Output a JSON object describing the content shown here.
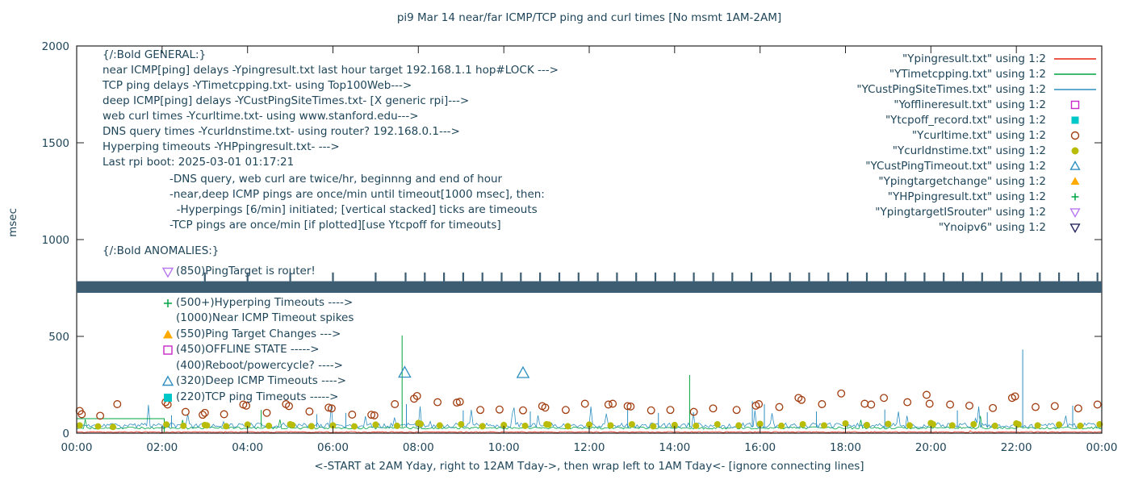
{
  "title": "pi9 Mar 14  near/far ICMP/TCP ping and curl times [No msmt 1AM-2AM]",
  "xlabel": "<-START at 2AM Yday, right to 12AM Tday->, then wrap left to 1AM Tday<- [ignore connecting lines]",
  "ylabel": "msec",
  "colors": {
    "text": "#20465a",
    "axis": "#222222",
    "red": "#e8210f",
    "green": "#00a443",
    "blue": "#2e8fc0",
    "magenta": "#c828c8",
    "cyan": "#00c8c8",
    "darkred": "#a13d10",
    "olive": "#b9bd0a",
    "orange": "#ffaa00",
    "violet": "#b878f0",
    "navy": "#26265e",
    "band": "#3d5d72"
  },
  "legend": [
    {
      "label": "\"Ypingresult.txt\" using 1:2",
      "marker": "line",
      "color": "#e8210f"
    },
    {
      "label": "\"YTimetcpping.txt\" using 1:2",
      "marker": "line",
      "color": "#00a443"
    },
    {
      "label": "\"YCustPingSiteTimes.txt\" using 1:2",
      "marker": "line",
      "color": "#2e8fc0"
    },
    {
      "label": "\"Yofflineresult.txt\" using 1:2",
      "marker": "open-square",
      "color": "#c828c8"
    },
    {
      "label": "\"Ytcpoff_record.txt\" using 1:2",
      "marker": "filled-square",
      "color": "#00c8c8"
    },
    {
      "label": "\"Ycurltime.txt\" using 1:2",
      "marker": "open-circle",
      "color": "#a13d10"
    },
    {
      "label": "\"Ycurldnstime.txt\" using 1:2",
      "marker": "filled-circle",
      "color": "#b9bd0a"
    },
    {
      "label": "\"YCustPingTimeout.txt\" using 1:2",
      "marker": "open-triangle-up",
      "color": "#2e8fc0"
    },
    {
      "label": "\"Ypingtargetchange\" using 1:2",
      "marker": "filled-triangle-up",
      "color": "#ffaa00"
    },
    {
      "label": "\"YHPpingresult.txt\" using 1:2",
      "marker": "plus",
      "color": "#00a443"
    },
    {
      "label": "\"YpingtargetISrouter\" using 1:2",
      "marker": "open-triangle-down",
      "color": "#b878f0"
    },
    {
      "label": "\"Ynoipv6\" using 1:2",
      "marker": "open-triangle-down",
      "color": "#26265e"
    }
  ],
  "general_lines": [
    "{/:Bold GENERAL:}",
    "near ICMP[ping] delays -Ypingresult.txt last hour target 192.168.1.1 hop#LOCK --->",
    "TCP ping delays -YTimetcpping.txt- using Top100Web--->",
    "deep ICMP[ping] delays -YCustPingSiteTimes.txt- [X generic rpi]--->",
    "web curl times -Ycurltime.txt- using www.stanford.edu--->",
    "DNS query times -Ycurldnstime.txt- using router? 192.168.0.1--->",
    "Hyperping timeouts -YHPpingresult.txt- --->",
    "Last rpi boot: 2025-03-01 01:17:21"
  ],
  "general_indent_lines": [
    "-DNS query, web curl are twice/hr, beginnng and end of hour",
    "-near,deep ICMP pings are once/min until timeout[1000 msec], then:",
    "  -Hyperpings [6/min] initiated; [vertical stacked] ticks are timeouts",
    "-TCP pings are once/min [if plotted][use Ytcpoff for timeouts]"
  ],
  "anomalies_header": "{/:Bold ANOMALIES:}",
  "anomalies": [
    {
      "marker": "open-triangle-down",
      "color": "#b878f0",
      "text": "(850)PingTarget is router!"
    },
    {
      "spacer": true
    },
    {
      "marker": "plus",
      "color": "#00a443",
      "text": "(500+)Hyperping Timeouts ---->"
    },
    {
      "marker": null,
      "color": null,
      "text": "(1000)Near ICMP Timeout spikes"
    },
    {
      "marker": "filled-triangle-up",
      "color": "#ffaa00",
      "text": "(550)Ping Target Changes --->"
    },
    {
      "marker": "open-square",
      "color": "#c828c8",
      "text": "(450)OFFLINE STATE ----->"
    },
    {
      "marker": null,
      "color": null,
      "text": "(400)Reboot/powercycle? ---->"
    },
    {
      "marker": "open-triangle-up",
      "color": "#2e8fc0",
      "text": "(320)Deep ICMP Timeouts ---->"
    },
    {
      "marker": "filled-square",
      "color": "#00c8c8",
      "text": "(220)TCP ping Timeouts ----->"
    }
  ],
  "chart_data": {
    "type": "line",
    "title": "pi9 Mar 14  near/far ICMP/TCP ping and curl times [No msmt 1AM-2AM]",
    "ylabel": "msec",
    "ylim": [
      0,
      2000
    ],
    "yticks": [
      0,
      500,
      1000,
      1500,
      2000
    ],
    "x_hours": [
      0,
      24
    ],
    "xtick_hours": [
      0,
      2,
      4,
      6,
      8,
      10,
      12,
      14,
      16,
      18,
      20,
      22,
      24
    ],
    "xtick_labels": [
      "00:00",
      "02:00",
      "04:00",
      "06:00",
      "08:00",
      "10:00",
      "12:00",
      "14:00",
      "16:00",
      "18:00",
      "20:00",
      "22:00",
      "00:00"
    ],
    "grid": false,
    "legend_position": "top-right-inside",
    "baseline_noise": [
      {
        "series": "Ypingresult.txt",
        "color": "#e8210f",
        "mean_msec": 6,
        "spread_msec": 5,
        "spike_prob": 0.002,
        "spike_max": 20,
        "seed": 47
      },
      {
        "series": "YTimetcpping.txt",
        "color": "#00a443",
        "mean_msec": 27,
        "spread_msec": 12,
        "spike_prob": 0.008,
        "spike_max": 70,
        "seed": 29
      },
      {
        "series": "YCustPingSiteTimes.txt",
        "color": "#2e8fc0",
        "mean_msec": 40,
        "spread_msec": 26,
        "spike_prob": 0.045,
        "spike_max": 120,
        "seed": 11
      }
    ],
    "spikes": [
      {
        "color": "#00a443",
        "x": 7.62,
        "y": 505
      },
      {
        "color": "#00a443",
        "x": 14.35,
        "y": 300
      },
      {
        "color": "#00a443",
        "x": 4.32,
        "y": 120
      },
      {
        "color": "#2e8fc0",
        "x": 22.15,
        "y": 432
      },
      {
        "color": "#2e8fc0",
        "x": 15.82,
        "y": 165
      },
      {
        "color": "#2e8fc0",
        "x": 16.1,
        "y": 150
      },
      {
        "color": "#2e8fc0",
        "x": 12.9,
        "y": 128
      },
      {
        "color": "#2e8fc0",
        "x": 9.05,
        "y": 118
      },
      {
        "color": "#2e8fc0",
        "x": 7.72,
        "y": 150
      },
      {
        "color": "#2e8fc0",
        "x": 10.62,
        "y": 112
      },
      {
        "color": "#2e8fc0",
        "x": 13.62,
        "y": 105
      },
      {
        "color": "#2e8fc0",
        "x": 17.32,
        "y": 112
      },
      {
        "color": "#2e8fc0",
        "x": 18.92,
        "y": 122
      },
      {
        "color": "#2e8fc0",
        "x": 20.62,
        "y": 118
      },
      {
        "color": "#2e8fc0",
        "x": 21.32,
        "y": 108
      },
      {
        "color": "#2e8fc0",
        "x": 23.32,
        "y": 142
      },
      {
        "color": "#2e8fc0",
        "x": 2.22,
        "y": 92
      },
      {
        "color": "#2e8fc0",
        "x": 5.62,
        "y": 98
      },
      {
        "color": "#2e8fc0",
        "x": 6.3,
        "y": 105
      }
    ],
    "curl_times": {
      "series": "Ycurltime.txt",
      "color": "#a13d10",
      "points_hour_msec": [
        [
          0.07,
          115
        ],
        [
          0.12,
          98
        ],
        [
          0.55,
          90
        ],
        [
          0.95,
          150
        ],
        [
          2.08,
          160
        ],
        [
          2.13,
          148
        ],
        [
          2.55,
          110
        ],
        [
          2.95,
          95
        ],
        [
          3.0,
          105
        ],
        [
          3.45,
          98
        ],
        [
          3.9,
          148
        ],
        [
          3.97,
          142
        ],
        [
          4.45,
          105
        ],
        [
          4.9,
          150
        ],
        [
          4.97,
          140
        ],
        [
          5.45,
          112
        ],
        [
          5.9,
          132
        ],
        [
          5.97,
          128
        ],
        [
          6.45,
          96
        ],
        [
          6.9,
          95
        ],
        [
          6.97,
          92
        ],
        [
          7.45,
          150
        ],
        [
          7.9,
          178
        ],
        [
          7.97,
          192
        ],
        [
          8.45,
          160
        ],
        [
          8.9,
          158
        ],
        [
          8.97,
          162
        ],
        [
          9.45,
          120
        ],
        [
          9.9,
          122
        ],
        [
          10.45,
          118
        ],
        [
          10.9,
          140
        ],
        [
          10.97,
          132
        ],
        [
          11.45,
          120
        ],
        [
          11.9,
          152
        ],
        [
          12.45,
          148
        ],
        [
          12.55,
          152
        ],
        [
          12.9,
          140
        ],
        [
          12.97,
          138
        ],
        [
          13.45,
          118
        ],
        [
          13.9,
          120
        ],
        [
          14.45,
          110
        ],
        [
          14.9,
          128
        ],
        [
          15.45,
          120
        ],
        [
          15.9,
          142
        ],
        [
          15.97,
          150
        ],
        [
          16.45,
          135
        ],
        [
          16.9,
          182
        ],
        [
          16.97,
          172
        ],
        [
          17.45,
          150
        ],
        [
          17.9,
          205
        ],
        [
          18.45,
          152
        ],
        [
          18.6,
          148
        ],
        [
          18.9,
          182
        ],
        [
          19.45,
          160
        ],
        [
          19.9,
          198
        ],
        [
          19.97,
          152
        ],
        [
          20.45,
          148
        ],
        [
          20.9,
          142
        ],
        [
          21.45,
          130
        ],
        [
          21.9,
          182
        ],
        [
          21.97,
          190
        ],
        [
          22.45,
          135
        ],
        [
          22.9,
          140
        ],
        [
          23.45,
          128
        ],
        [
          23.9,
          148
        ]
      ]
    },
    "dns_times": {
      "series": "Ycurldnstime.txt",
      "color": "#b9bd0a",
      "points_hour_msec": [
        [
          0.07,
          40
        ],
        [
          0.5,
          35
        ],
        [
          0.85,
          32
        ],
        [
          2.1,
          45
        ],
        [
          2.5,
          38
        ],
        [
          3.0,
          42
        ],
        [
          3.05,
          40
        ],
        [
          3.5,
          36
        ],
        [
          4.0,
          44
        ],
        [
          4.5,
          38
        ],
        [
          5.0,
          46
        ],
        [
          5.05,
          42
        ],
        [
          5.5,
          36
        ],
        [
          6.0,
          40
        ],
        [
          6.5,
          35
        ],
        [
          7.0,
          44
        ],
        [
          7.5,
          38
        ],
        [
          8.0,
          52
        ],
        [
          8.05,
          48
        ],
        [
          8.5,
          40
        ],
        [
          9.0,
          46
        ],
        [
          9.5,
          36
        ],
        [
          10.0,
          42
        ],
        [
          10.5,
          38
        ],
        [
          11.0,
          46
        ],
        [
          11.05,
          44
        ],
        [
          11.5,
          36
        ],
        [
          12.0,
          44
        ],
        [
          12.5,
          40
        ],
        [
          13.0,
          46
        ],
        [
          13.5,
          36
        ],
        [
          14.0,
          42
        ],
        [
          14.5,
          38
        ],
        [
          15.0,
          46
        ],
        [
          15.5,
          40
        ],
        [
          16.0,
          48
        ],
        [
          16.5,
          38
        ],
        [
          17.0,
          46
        ],
        [
          17.5,
          40
        ],
        [
          18.0,
          50
        ],
        [
          18.5,
          42
        ],
        [
          19.0,
          48
        ],
        [
          19.5,
          40
        ],
        [
          20.0,
          52
        ],
        [
          20.05,
          46
        ],
        [
          20.5,
          40
        ],
        [
          21.0,
          46
        ],
        [
          21.5,
          38
        ],
        [
          22.0,
          50
        ],
        [
          22.05,
          46
        ],
        [
          22.5,
          40
        ],
        [
          23.0,
          44
        ],
        [
          23.5,
          38
        ],
        [
          23.95,
          46
        ]
      ]
    },
    "deep_icmp_timeouts": {
      "series": "YCustPingTimeout.txt",
      "color": "#2e8fc0",
      "points_hour_msec": [
        [
          7.68,
          312
        ],
        [
          10.45,
          310
        ]
      ]
    },
    "hyperping_timeout_band": {
      "color": "#3d5d72",
      "y_range_msec": [
        725,
        785
      ],
      "x_range_hours": [
        0,
        24
      ]
    },
    "band_top_ticks": {
      "color": "#3d5d72",
      "base_msec": 785,
      "tick_height_msec": 45,
      "hours": [
        3.0,
        4.0,
        5.0,
        6.0,
        7.0,
        7.7,
        8.15,
        8.6,
        9.05,
        9.5,
        9.95,
        10.4,
        10.85,
        11.3,
        11.75,
        12.2,
        12.65,
        13.1,
        13.55,
        14.0,
        14.45,
        14.9,
        15.35,
        15.8,
        16.25,
        16.7,
        17.15,
        17.6,
        18.05,
        18.5,
        18.95,
        19.4,
        19.85,
        20.3,
        20.75,
        21.2,
        21.65,
        22.1,
        22.55,
        23.0,
        23.45,
        23.9
      ]
    },
    "first_hours_box": {
      "color": "#00a443",
      "x_range_hours": [
        0,
        2.05
      ],
      "y_msec": 75
    }
  }
}
